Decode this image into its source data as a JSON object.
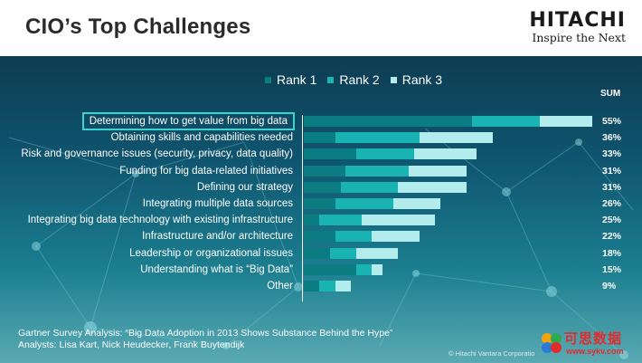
{
  "header": {
    "title": "CIO’s Top Challenges",
    "brand_name": "HITACHI",
    "brand_tagline": "Inspire the Next"
  },
  "legend": [
    {
      "label": "Rank 1",
      "color": "#0a7c82"
    },
    {
      "label": "Rank 2",
      "color": "#19b3b3"
    },
    {
      "label": "Rank 3",
      "color": "#b3ecec"
    }
  ],
  "sum_header": "SUM",
  "chart_data": {
    "type": "bar",
    "orientation": "horizontal",
    "stacked": true,
    "categories": [
      "Determining how to get value from big data",
      "Obtaining skills and capabilities needed",
      "Risk and governance issues (security, privacy, data quality)",
      "Funding for big data-related initiatives",
      "Defining our strategy",
      "Integrating multiple data sources",
      "Integrating big data technology with existing infrastructure",
      "Infrastructure and/or architecture",
      "Leadership or organizational issues",
      "Understanding what is “Big Data”",
      "Other"
    ],
    "series": [
      {
        "name": "Rank 1",
        "values": [
          32,
          6,
          10,
          8,
          7,
          6,
          3,
          6,
          5,
          10,
          3
        ]
      },
      {
        "name": "Rank 2",
        "values": [
          13,
          16,
          11,
          12,
          11,
          11,
          8,
          7,
          5,
          3,
          3
        ]
      },
      {
        "name": "Rank 3",
        "values": [
          10,
          14,
          12,
          11,
          13,
          9,
          14,
          9,
          8,
          2,
          3
        ]
      }
    ],
    "sums": [
      "55%",
      "36%",
      "33%",
      "31%",
      "31%",
      "26%",
      "25%",
      "22%",
      "18%",
      "15%",
      "9%"
    ],
    "highlighted_category": "Determining how to get value from big data",
    "xlim": [
      0,
      55
    ],
    "grid": false,
    "legend_position": "top"
  },
  "footer": {
    "line1": "Gartner Survey Analysis: “Big Data Adoption in 2013 Shows Substance Behind the Hype”",
    "line2": "Analysts: Lisa Kart, Nick Heudecker, Frank Buytendijk",
    "copyright": "© Hitachi Vantara Corporatio"
  },
  "watermark": {
    "text": "可思数据",
    "url": "www.sykv.com"
  }
}
